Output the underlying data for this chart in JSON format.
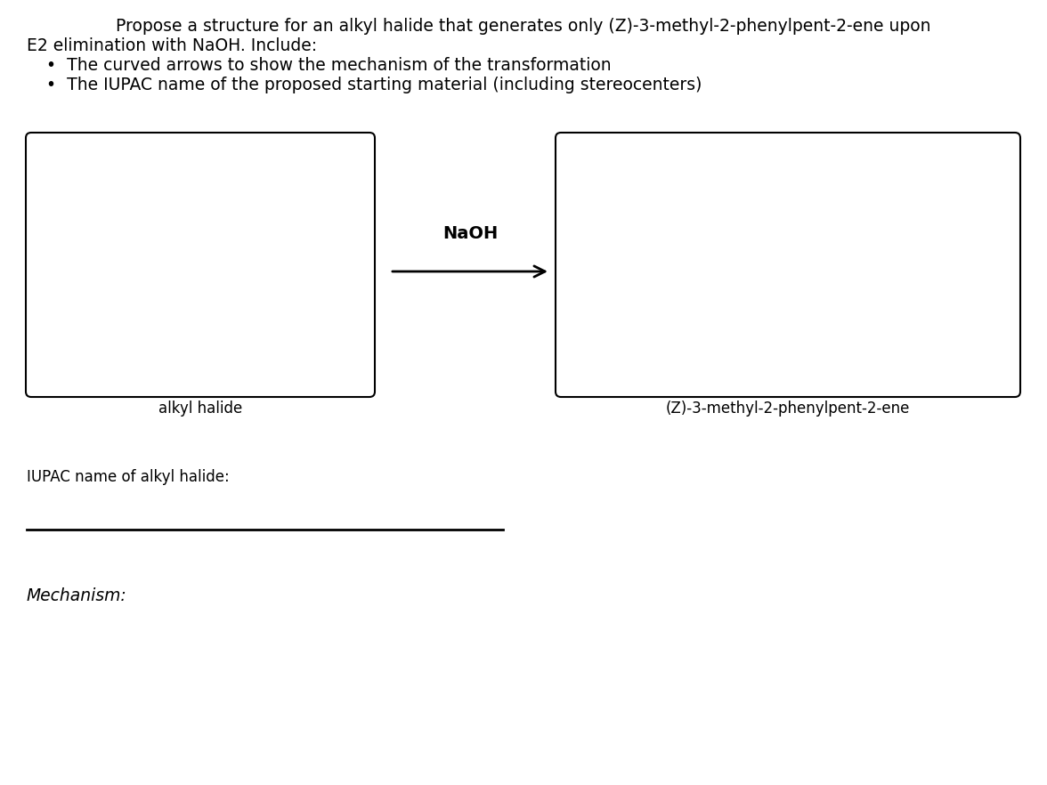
{
  "title_line1": "Propose a structure for an alkyl halide that generates only (Z)-3-methyl-2-phenylpent-2-ene upon",
  "title_line2": "E2 elimination with NaOH. Include:",
  "bullet1": "The curved arrows to show the mechanism of the transformation",
  "bullet2": "The IUPAC name of the proposed starting material (including stereocenters)",
  "box_left_label": "alkyl halide",
  "box_right_label": "(Z)-3-methyl-2-phenylpent-2-ene",
  "arrow_label": "NaOH",
  "iupac_label": "IUPAC name of alkyl halide:",
  "mechanism_label": "Mechanism:",
  "bg_color": "#ffffff",
  "text_color": "#000000",
  "title_fontsize": 13.5,
  "bullet_fontsize": 13.5,
  "label_fontsize": 12,
  "iupac_fontsize": 12,
  "mechanism_fontsize": 13.5,
  "naoh_fontsize": 14
}
